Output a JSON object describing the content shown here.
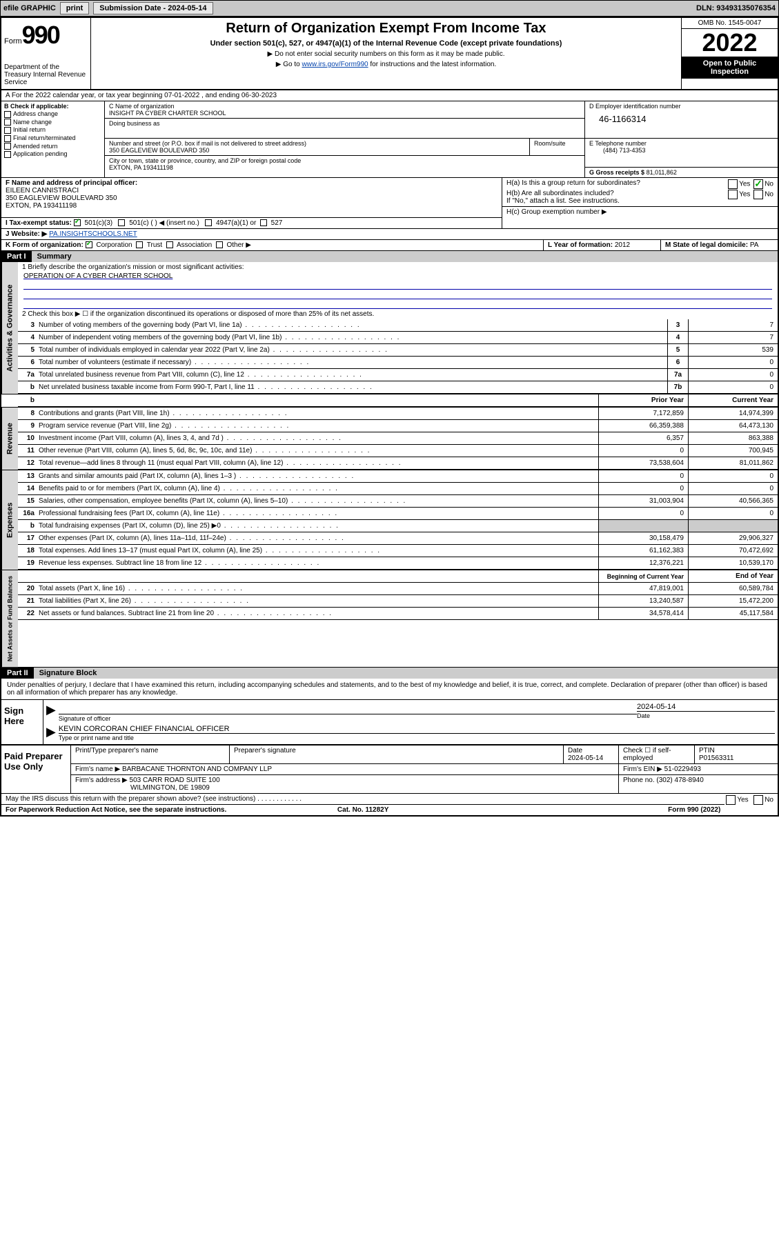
{
  "topbar": {
    "efile": "efile GRAPHIC",
    "print": "print",
    "subdate_label": "Submission Date - 2024-05-14",
    "dln": "DLN: 93493135076354"
  },
  "header": {
    "form_word": "Form",
    "form_num": "990",
    "dept": "Department of the Treasury Internal Revenue Service",
    "title": "Return of Organization Exempt From Income Tax",
    "subtitle": "Under section 501(c), 527, or 4947(a)(1) of the Internal Revenue Code (except private foundations)",
    "note1": "▶ Do not enter social security numbers on this form as it may be made public.",
    "note2_pre": "▶ Go to ",
    "note2_link": "www.irs.gov/Form990",
    "note2_post": " for instructions and the latest information.",
    "omb": "OMB No. 1545-0047",
    "year": "2022",
    "open": "Open to Public Inspection"
  },
  "rowA": {
    "text": "A For the 2022 calendar year, or tax year beginning 07-01-2022    , and ending 06-30-2023"
  },
  "checkB": {
    "label": "B Check if applicable:",
    "items": [
      "Address change",
      "Name change",
      "Initial return",
      "Final return/terminated",
      "Amended return",
      "Application pending"
    ]
  },
  "boxC": {
    "name_label": "C Name of organization",
    "name": "INSIGHT PA CYBER CHARTER SCHOOL",
    "dba_label": "Doing business as",
    "addr_label": "Number and street (or P.O. box if mail is not delivered to street address)",
    "room_label": "Room/suite",
    "addr": "350 EAGLEVIEW BOULEVARD 350",
    "city_label": "City or town, state or province, country, and ZIP or foreign postal code",
    "city": "EXTON, PA  193411198"
  },
  "boxD": {
    "label": "D Employer identification number",
    "ein": "46-1166314"
  },
  "boxE": {
    "label": "E Telephone number",
    "phone": "(484) 713-4353"
  },
  "boxG": {
    "label": "G Gross receipts $",
    "val": "81,011,862"
  },
  "boxF": {
    "label": "F Name and address of principal officer:",
    "name": "EILEEN CANNISTRACI",
    "addr1": "350 EAGLEVIEW BOULEVARD 350",
    "addr2": "EXTON, PA  193411198"
  },
  "boxH": {
    "a": "H(a)  Is this a group return for subordinates?",
    "b": "H(b)  Are all subordinates included?",
    "b_note": "If \"No,\" attach a list. See instructions.",
    "c": "H(c)  Group exemption number ▶"
  },
  "rowI": {
    "label": "I  Tax-exempt status:",
    "opts": [
      "501(c)(3)",
      "501(c) (  ) ◀ (insert no.)",
      "4947(a)(1) or",
      "527"
    ]
  },
  "rowJ": {
    "label": "J  Website: ▶",
    "val": "PA.INSIGHTSCHOOLS.NET"
  },
  "rowK": {
    "label": "K Form of organization:",
    "opts": [
      "Corporation",
      "Trust",
      "Association",
      "Other ▶"
    ]
  },
  "rowL": {
    "label": "L Year of formation:",
    "val": "2012"
  },
  "rowM": {
    "label": "M State of legal domicile:",
    "val": "PA"
  },
  "part1": {
    "hdr": "Part I",
    "title": "Summary"
  },
  "mission": {
    "label": "1  Briefly describe the organization's mission or most significant activities:",
    "text": "OPERATION OF A CYBER CHARTER SCHOOL"
  },
  "line2": "2   Check this box ▶ ☐  if the organization discontinued its operations or disposed of more than 25% of its net assets.",
  "summary_lines": [
    {
      "n": "3",
      "t": "Number of voting members of the governing body (Part VI, line 1a)",
      "box": "3",
      "v": "7"
    },
    {
      "n": "4",
      "t": "Number of independent voting members of the governing body (Part VI, line 1b)",
      "box": "4",
      "v": "7"
    },
    {
      "n": "5",
      "t": "Total number of individuals employed in calendar year 2022 (Part V, line 2a)",
      "box": "5",
      "v": "539"
    },
    {
      "n": "6",
      "t": "Total number of volunteers (estimate if necessary)",
      "box": "6",
      "v": "0"
    },
    {
      "n": "7a",
      "t": "Total unrelated business revenue from Part VIII, column (C), line 12",
      "box": "7a",
      "v": "0"
    },
    {
      "n": "b",
      "t": "Net unrelated business taxable income from Form 990-T, Part I, line 11",
      "box": "7b",
      "v": "0"
    }
  ],
  "col_headers": {
    "prior": "Prior Year",
    "current": "Current Year"
  },
  "revenue": [
    {
      "n": "8",
      "t": "Contributions and grants (Part VIII, line 1h)",
      "p": "7,172,859",
      "c": "14,974,399"
    },
    {
      "n": "9",
      "t": "Program service revenue (Part VIII, line 2g)",
      "p": "66,359,388",
      "c": "64,473,130"
    },
    {
      "n": "10",
      "t": "Investment income (Part VIII, column (A), lines 3, 4, and 7d )",
      "p": "6,357",
      "c": "863,388"
    },
    {
      "n": "11",
      "t": "Other revenue (Part VIII, column (A), lines 5, 6d, 8c, 9c, 10c, and 11e)",
      "p": "0",
      "c": "700,945"
    },
    {
      "n": "12",
      "t": "Total revenue—add lines 8 through 11 (must equal Part VIII, column (A), line 12)",
      "p": "73,538,604",
      "c": "81,011,862"
    }
  ],
  "expenses": [
    {
      "n": "13",
      "t": "Grants and similar amounts paid (Part IX, column (A), lines 1–3 )",
      "p": "0",
      "c": "0"
    },
    {
      "n": "14",
      "t": "Benefits paid to or for members (Part IX, column (A), line 4)",
      "p": "0",
      "c": "0"
    },
    {
      "n": "15",
      "t": "Salaries, other compensation, employee benefits (Part IX, column (A), lines 5–10)",
      "p": "31,003,904",
      "c": "40,566,365"
    },
    {
      "n": "16a",
      "t": "Professional fundraising fees (Part IX, column (A), line 11e)",
      "p": "0",
      "c": "0"
    },
    {
      "n": "b",
      "t": "Total fundraising expenses (Part IX, column (D), line 25) ▶0",
      "shade": true
    },
    {
      "n": "17",
      "t": "Other expenses (Part IX, column (A), lines 11a–11d, 11f–24e)",
      "p": "30,158,479",
      "c": "29,906,327"
    },
    {
      "n": "18",
      "t": "Total expenses. Add lines 13–17 (must equal Part IX, column (A), line 25)",
      "p": "61,162,383",
      "c": "70,472,692"
    },
    {
      "n": "19",
      "t": "Revenue less expenses. Subtract line 18 from line 12",
      "p": "12,376,221",
      "c": "10,539,170"
    }
  ],
  "net_headers": {
    "begin": "Beginning of Current Year",
    "end": "End of Year"
  },
  "netassets": [
    {
      "n": "20",
      "t": "Total assets (Part X, line 16)",
      "p": "47,819,001",
      "c": "60,589,784"
    },
    {
      "n": "21",
      "t": "Total liabilities (Part X, line 26)",
      "p": "13,240,587",
      "c": "15,472,200"
    },
    {
      "n": "22",
      "t": "Net assets or fund balances. Subtract line 21 from line 20",
      "p": "34,578,414",
      "c": "45,117,584"
    }
  ],
  "part2": {
    "hdr": "Part II",
    "title": "Signature Block"
  },
  "penalties": "Under penalties of perjury, I declare that I have examined this return, including accompanying schedules and statements, and to the best of my knowledge and belief, it is true, correct, and complete. Declaration of preparer (other than officer) is based on all information of which preparer has any knowledge.",
  "sign": {
    "here": "Sign Here",
    "sig_of_officer": "Signature of officer",
    "date": "2024-05-14",
    "date_lbl": "Date",
    "officer": "KEVIN CORCORAN  CHIEF FINANCIAL OFFICER",
    "officer_lbl": "Type or print name and title"
  },
  "paid": {
    "label": "Paid Preparer Use Only",
    "pt_name_lbl": "Print/Type preparer's name",
    "sig_lbl": "Preparer's signature",
    "date_lbl": "Date",
    "date": "2024-05-14",
    "check_lbl": "Check ☐ if self-employed",
    "ptin_lbl": "PTIN",
    "ptin": "P01563311",
    "firm_name_lbl": "Firm's name    ▶",
    "firm_name": "BARBACANE THORNTON AND COMPANY LLP",
    "firm_ein_lbl": "Firm's EIN ▶",
    "firm_ein": "51-0229493",
    "firm_addr_lbl": "Firm's address ▶",
    "firm_addr1": "503 CARR ROAD SUITE 100",
    "firm_addr2": "WILMINGTON, DE  19809",
    "phone_lbl": "Phone no.",
    "phone": "(302) 478-8940"
  },
  "discuss": "May the IRS discuss this return with the preparer shown above? (see instructions)",
  "footer": {
    "left": "For Paperwork Reduction Act Notice, see the separate instructions.",
    "mid": "Cat. No. 11282Y",
    "right": "Form 990 (2022)"
  },
  "vert_labels": {
    "ag": "Activities & Governance",
    "rev": "Revenue",
    "exp": "Expenses",
    "net": "Net Assets or Fund Balances"
  }
}
